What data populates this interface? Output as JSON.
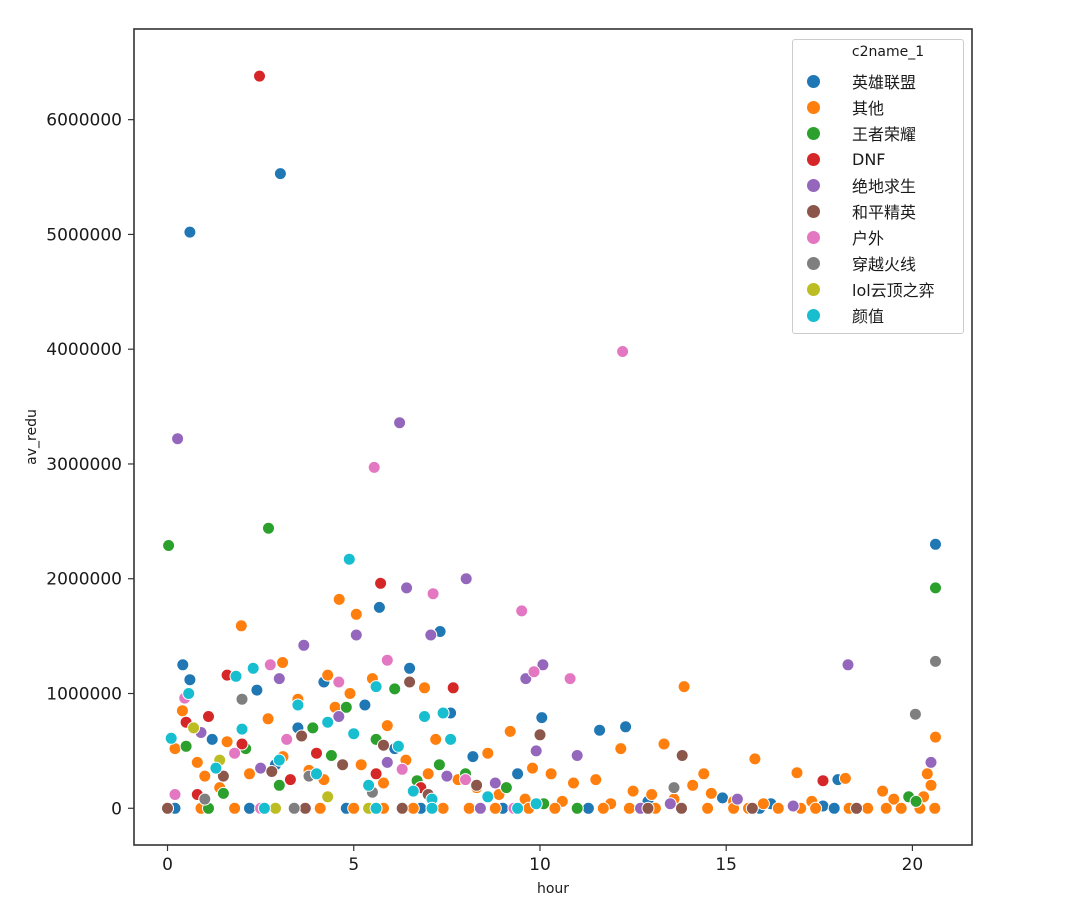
{
  "chart_data": {
    "type": "scatter",
    "title": "",
    "xlabel": "hour",
    "ylabel": "av_redu",
    "xlim": [
      -0.9,
      21.6
    ],
    "ylim": [
      -320000,
      6790000
    ],
    "xticks": [
      0,
      5,
      10,
      15,
      20
    ],
    "yticks": [
      0,
      1000000,
      2000000,
      3000000,
      4000000,
      5000000,
      6000000
    ],
    "ytick_labels": [
      "0",
      "1000000",
      "2000000",
      "3000000",
      "4000000",
      "5000000",
      "6000000"
    ],
    "grid": false,
    "legend": {
      "title": "c2name_1",
      "position": "upper right",
      "entries": [
        {
          "name": "英雄联盟",
          "color": "#1f77b4"
        },
        {
          "name": "其他",
          "color": "#ff7f0e"
        },
        {
          "name": "王者荣耀",
          "color": "#2ca02c"
        },
        {
          "name": "DNF",
          "color": "#d62728"
        },
        {
          "name": "绝地求生",
          "color": "#9467bd"
        },
        {
          "name": "和平精英",
          "color": "#8c564b"
        },
        {
          "name": "户外",
          "color": "#e377c2"
        },
        {
          "name": "穿越火线",
          "color": "#7f7f7f"
        },
        {
          "name": "lol云顶之弈",
          "color": "#bcbd22"
        },
        {
          "name": "颜值",
          "color": "#17becf"
        }
      ]
    },
    "series": [
      {
        "name": "英雄联盟",
        "points": [
          [
            0.6,
            5020000
          ],
          [
            3.03,
            5530000
          ],
          [
            20.62,
            2300000
          ],
          [
            5.69,
            1750000
          ],
          [
            7.32,
            1540000
          ],
          [
            0.41,
            1250000
          ],
          [
            0.6,
            1120000
          ],
          [
            6.5,
            1220000
          ],
          [
            10.05,
            790000
          ],
          [
            11.6,
            680000
          ],
          [
            12.3,
            710000
          ],
          [
            4.2,
            1100000
          ],
          [
            2.4,
            1030000
          ],
          [
            5.3,
            900000
          ],
          [
            7.6,
            830000
          ],
          [
            3.5,
            700000
          ],
          [
            1.2,
            600000
          ],
          [
            8.2,
            450000
          ],
          [
            9.4,
            300000
          ],
          [
            6.1,
            520000
          ],
          [
            2.9,
            380000
          ],
          [
            17.6,
            20000
          ],
          [
            18.0,
            250000
          ],
          [
            14.9,
            90000
          ],
          [
            16.2,
            40000
          ],
          [
            12.9,
            60000
          ],
          [
            0.2,
            0
          ],
          [
            2.2,
            0
          ],
          [
            4.8,
            0
          ],
          [
            6.8,
            0
          ],
          [
            9.0,
            0
          ],
          [
            11.3,
            0
          ],
          [
            15.9,
            0
          ],
          [
            17.9,
            0
          ]
        ]
      },
      {
        "name": "其他",
        "points": [
          [
            4.61,
            1820000
          ],
          [
            5.07,
            1690000
          ],
          [
            1.98,
            1590000
          ],
          [
            3.09,
            1270000
          ],
          [
            13.87,
            1060000
          ],
          [
            20.62,
            620000
          ],
          [
            12.17,
            520000
          ],
          [
            13.33,
            560000
          ],
          [
            15.77,
            430000
          ],
          [
            16.9,
            310000
          ],
          [
            14.4,
            300000
          ],
          [
            14.1,
            200000
          ],
          [
            18.2,
            260000
          ],
          [
            19.2,
            150000
          ],
          [
            20.4,
            300000
          ],
          [
            20.5,
            200000
          ],
          [
            20.3,
            100000
          ],
          [
            4.3,
            1160000
          ],
          [
            5.5,
            1130000
          ],
          [
            6.9,
            1050000
          ],
          [
            4.9,
            1000000
          ],
          [
            2.7,
            780000
          ],
          [
            1.6,
            580000
          ],
          [
            3.5,
            950000
          ],
          [
            4.5,
            880000
          ],
          [
            5.9,
            720000
          ],
          [
            7.2,
            600000
          ],
          [
            8.6,
            480000
          ],
          [
            9.2,
            670000
          ],
          [
            9.8,
            350000
          ],
          [
            10.3,
            300000
          ],
          [
            10.9,
            220000
          ],
          [
            11.5,
            250000
          ],
          [
            12.5,
            150000
          ],
          [
            13.0,
            120000
          ],
          [
            13.6,
            80000
          ],
          [
            14.6,
            130000
          ],
          [
            15.2,
            60000
          ],
          [
            16.0,
            40000
          ],
          [
            17.3,
            60000
          ],
          [
            19.5,
            80000
          ],
          [
            0.4,
            850000
          ],
          [
            0.2,
            520000
          ],
          [
            0.8,
            400000
          ],
          [
            1.0,
            280000
          ],
          [
            1.4,
            180000
          ],
          [
            2.2,
            300000
          ],
          [
            3.1,
            450000
          ],
          [
            3.8,
            330000
          ],
          [
            4.2,
            250000
          ],
          [
            5.2,
            380000
          ],
          [
            5.8,
            220000
          ],
          [
            6.4,
            420000
          ],
          [
            7.0,
            300000
          ],
          [
            7.8,
            250000
          ],
          [
            8.3,
            180000
          ],
          [
            8.9,
            120000
          ],
          [
            9.6,
            80000
          ],
          [
            10.6,
            60000
          ],
          [
            11.9,
            40000
          ],
          [
            0.0,
            0
          ],
          [
            0.9,
            0
          ],
          [
            1.8,
            0
          ],
          [
            2.6,
            0
          ],
          [
            3.4,
            0
          ],
          [
            4.1,
            0
          ],
          [
            5.0,
            0
          ],
          [
            5.8,
            0
          ],
          [
            6.6,
            0
          ],
          [
            7.4,
            0
          ],
          [
            8.1,
            0
          ],
          [
            8.8,
            0
          ],
          [
            9.7,
            0
          ],
          [
            10.4,
            0
          ],
          [
            11.0,
            0
          ],
          [
            11.7,
            0
          ],
          [
            12.4,
            0
          ],
          [
            13.1,
            0
          ],
          [
            13.8,
            0
          ],
          [
            14.5,
            0
          ],
          [
            15.2,
            0
          ],
          [
            15.6,
            0
          ],
          [
            16.4,
            0
          ],
          [
            17.0,
            0
          ],
          [
            17.4,
            0
          ],
          [
            18.3,
            0
          ],
          [
            18.8,
            0
          ],
          [
            19.3,
            0
          ],
          [
            19.7,
            0
          ],
          [
            20.2,
            0
          ],
          [
            20.6,
            0
          ]
        ]
      },
      {
        "name": "王者荣耀",
        "points": [
          [
            0.03,
            2290000
          ],
          [
            2.71,
            2440000
          ],
          [
            20.62,
            1920000
          ],
          [
            6.1,
            1040000
          ],
          [
            4.8,
            880000
          ],
          [
            3.9,
            700000
          ],
          [
            5.6,
            600000
          ],
          [
            2.1,
            520000
          ],
          [
            0.5,
            540000
          ],
          [
            7.3,
            380000
          ],
          [
            8.0,
            300000
          ],
          [
            4.4,
            460000
          ],
          [
            6.7,
            240000
          ],
          [
            9.1,
            180000
          ],
          [
            3.0,
            200000
          ],
          [
            1.5,
            130000
          ],
          [
            10.1,
            40000
          ],
          [
            19.9,
            100000
          ],
          [
            20.1,
            60000
          ],
          [
            11.0,
            0
          ],
          [
            1.1,
            0
          ]
        ]
      },
      {
        "name": "DNF",
        "points": [
          [
            2.47,
            6380000
          ],
          [
            5.72,
            1960000
          ],
          [
            7.67,
            1050000
          ],
          [
            1.6,
            1160000
          ],
          [
            1.1,
            800000
          ],
          [
            0.5,
            750000
          ],
          [
            2.0,
            560000
          ],
          [
            4.0,
            480000
          ],
          [
            5.6,
            300000
          ],
          [
            3.3,
            250000
          ],
          [
            6.8,
            180000
          ],
          [
            17.6,
            240000
          ],
          [
            0.8,
            120000
          ]
        ]
      },
      {
        "name": "绝地求生",
        "points": [
          [
            0.27,
            3220000
          ],
          [
            6.23,
            3360000
          ],
          [
            6.42,
            1920000
          ],
          [
            8.02,
            2000000
          ],
          [
            5.07,
            1510000
          ],
          [
            7.07,
            1510000
          ],
          [
            3.66,
            1420000
          ],
          [
            3.0,
            1130000
          ],
          [
            18.27,
            1250000
          ],
          [
            10.08,
            1250000
          ],
          [
            9.62,
            1130000
          ],
          [
            11.0,
            460000
          ],
          [
            0.9,
            660000
          ],
          [
            4.6,
            800000
          ],
          [
            5.9,
            400000
          ],
          [
            7.5,
            280000
          ],
          [
            2.5,
            350000
          ],
          [
            8.8,
            220000
          ],
          [
            9.9,
            500000
          ],
          [
            20.5,
            400000
          ],
          [
            15.3,
            80000
          ],
          [
            13.5,
            40000
          ],
          [
            16.8,
            20000
          ],
          [
            12.7,
            0
          ],
          [
            8.4,
            0
          ],
          [
            2.9,
            0
          ]
        ]
      },
      {
        "name": "和平精英",
        "points": [
          [
            13.82,
            460000
          ],
          [
            10.0,
            640000
          ],
          [
            6.5,
            1100000
          ],
          [
            3.6,
            630000
          ],
          [
            5.8,
            550000
          ],
          [
            4.7,
            380000
          ],
          [
            2.8,
            320000
          ],
          [
            8.3,
            200000
          ],
          [
            1.5,
            280000
          ],
          [
            7.0,
            120000
          ],
          [
            0.0,
            0
          ],
          [
            3.7,
            0
          ],
          [
            6.3,
            0
          ],
          [
            12.9,
            0
          ],
          [
            15.7,
            0
          ],
          [
            18.5,
            0
          ],
          [
            13.8,
            0
          ]
        ]
      },
      {
        "name": "户外",
        "points": [
          [
            12.22,
            3980000
          ],
          [
            5.55,
            2970000
          ],
          [
            7.13,
            1870000
          ],
          [
            9.51,
            1720000
          ],
          [
            9.84,
            1190000
          ],
          [
            10.81,
            1130000
          ],
          [
            2.76,
            1250000
          ],
          [
            0.46,
            960000
          ],
          [
            5.9,
            1290000
          ],
          [
            4.6,
            1100000
          ],
          [
            3.2,
            600000
          ],
          [
            1.8,
            480000
          ],
          [
            0.2,
            120000
          ],
          [
            6.3,
            340000
          ],
          [
            8.0,
            250000
          ],
          [
            9.3,
            0
          ],
          [
            2.5,
            0
          ]
        ]
      },
      {
        "name": "穿越火线",
        "points": [
          [
            20.62,
            1280000
          ],
          [
            20.08,
            820000
          ],
          [
            2.0,
            950000
          ],
          [
            13.6,
            180000
          ],
          [
            3.8,
            280000
          ],
          [
            5.5,
            140000
          ],
          [
            1.0,
            80000
          ],
          [
            3.4,
            0
          ]
        ]
      },
      {
        "name": "lol云顶之弈",
        "points": [
          [
            1.4,
            420000
          ],
          [
            0.7,
            700000
          ],
          [
            4.3,
            100000
          ],
          [
            2.9,
            0
          ],
          [
            5.4,
            0
          ],
          [
            7.1,
            0
          ]
        ]
      },
      {
        "name": "颜值",
        "points": [
          [
            4.88,
            2170000
          ],
          [
            0.57,
            1000000
          ],
          [
            1.84,
            1150000
          ],
          [
            2.3,
            1220000
          ],
          [
            0.1,
            610000
          ],
          [
            3.5,
            900000
          ],
          [
            4.3,
            750000
          ],
          [
            5.0,
            650000
          ],
          [
            5.6,
            1060000
          ],
          [
            6.2,
            540000
          ],
          [
            6.9,
            800000
          ],
          [
            7.4,
            830000
          ],
          [
            7.6,
            600000
          ],
          [
            2.0,
            690000
          ],
          [
            1.3,
            350000
          ],
          [
            3.0,
            420000
          ],
          [
            4.0,
            300000
          ],
          [
            5.4,
            200000
          ],
          [
            6.6,
            150000
          ],
          [
            7.1,
            80000
          ],
          [
            8.6,
            100000
          ],
          [
            9.9,
            40000
          ],
          [
            2.6,
            0
          ],
          [
            5.6,
            0
          ],
          [
            7.1,
            0
          ],
          [
            9.4,
            0
          ]
        ]
      }
    ]
  }
}
